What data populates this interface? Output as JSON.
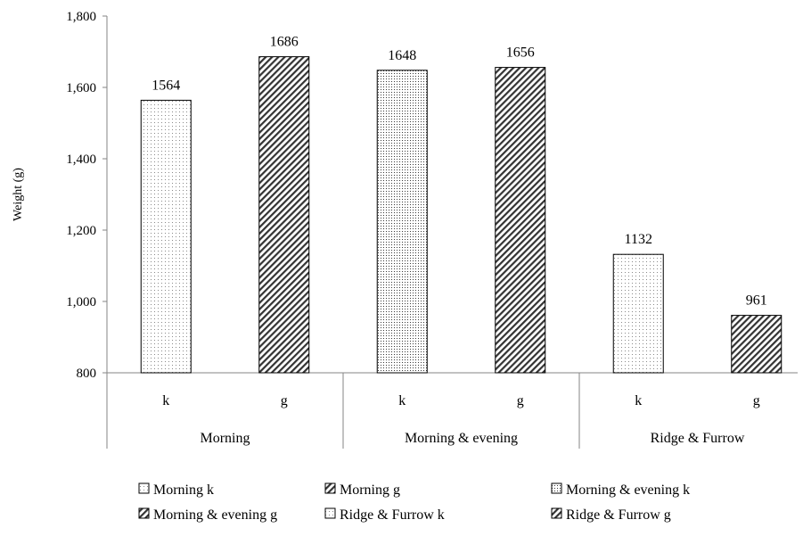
{
  "chart_data": {
    "type": "bar",
    "title": "",
    "ylabel": "Weight (g)",
    "ylim": [
      800,
      1800
    ],
    "yticks": [
      800,
      1000,
      1200,
      1400,
      1600,
      1800
    ],
    "ytick_labels": [
      "800",
      "1,000",
      "1,200",
      "1,400",
      "1,600",
      "1,800"
    ],
    "groups": [
      "Morning",
      "Morning & evening",
      "Ridge & Furrow"
    ],
    "categories": [
      "k",
      "g",
      "k",
      "g",
      "k",
      "g"
    ],
    "series": [
      {
        "name": "Morning k",
        "group": 0,
        "category": "k",
        "value": 1564,
        "pattern": "dots-light"
      },
      {
        "name": "Morning g",
        "group": 0,
        "category": "g",
        "value": 1686,
        "pattern": "diag"
      },
      {
        "name": "Morning & evening k",
        "group": 1,
        "category": "k",
        "value": 1648,
        "pattern": "dots-dense"
      },
      {
        "name": "Morning & evening g",
        "group": 1,
        "category": "g",
        "value": 1656,
        "pattern": "diag"
      },
      {
        "name": "Ridge & Furrow k",
        "group": 2,
        "category": "k",
        "value": 1132,
        "pattern": "dots-light"
      },
      {
        "name": "Ridge & Furrow g",
        "group": 2,
        "category": "g",
        "value": 961,
        "pattern": "diag"
      }
    ],
    "data_labels": [
      "1564",
      "1686",
      "1648",
      "1656",
      "1132",
      "961"
    ],
    "grid": false,
    "legend_position": "bottom"
  }
}
